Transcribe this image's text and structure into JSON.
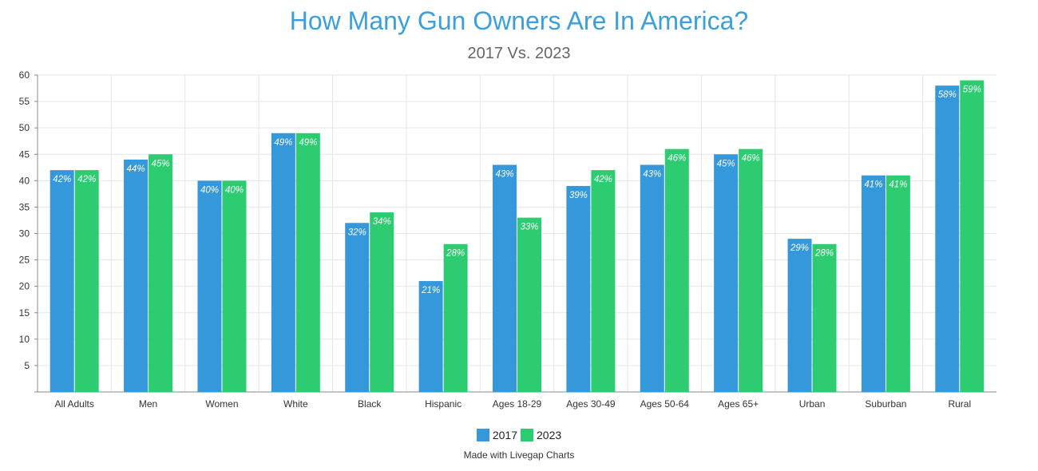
{
  "chart_data": {
    "type": "bar",
    "title": "How Many Gun Owners Are In America?",
    "subtitle": "2017 Vs. 2023",
    "categories": [
      "All Adults",
      "Men",
      "Women",
      "White",
      "Black",
      "Hispanic",
      "Ages 18-29",
      "Ages 30-49",
      "Ages 50-64",
      "Ages 65+",
      "Urban",
      "Suburban",
      "Rural"
    ],
    "series": [
      {
        "name": "2017",
        "color": "#3498db",
        "values": [
          42,
          44,
          40,
          49,
          32,
          21,
          43,
          39,
          43,
          45,
          29,
          41,
          58
        ]
      },
      {
        "name": "2023",
        "color": "#2ecc71",
        "values": [
          42,
          45,
          40,
          49,
          34,
          28,
          33,
          42,
          46,
          46,
          28,
          41,
          59
        ]
      }
    ],
    "data_label_suffix": "%",
    "ylim": [
      0,
      60
    ],
    "yticks": [
      5,
      10,
      15,
      20,
      25,
      30,
      35,
      40,
      45,
      50,
      55,
      60
    ],
    "grid": true,
    "legend_position": "bottom-center"
  },
  "footer": "Made with Livegap Charts"
}
